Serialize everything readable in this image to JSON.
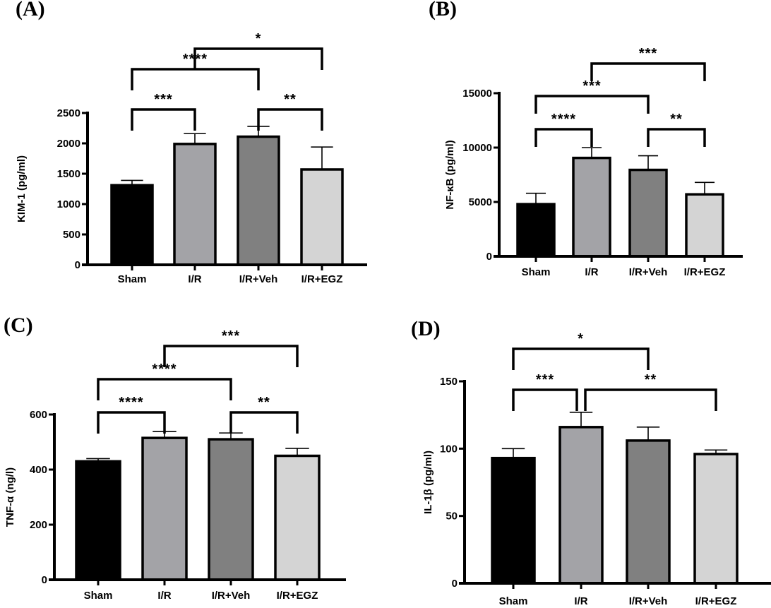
{
  "figure": {
    "panels": [
      "(A)",
      "(B)",
      "(C)",
      "(D)"
    ]
  },
  "chart_data": [
    {
      "panel": "(A)",
      "type": "bar",
      "title": "",
      "xlabel": "",
      "ylabel": "KIM-1 (pg/ml)",
      "categories": [
        "Sham",
        "I/R",
        "I/R+Veh",
        "I/R+EGZ"
      ],
      "values": [
        1310,
        1990,
        2110,
        1570
      ],
      "error_upper": [
        1390,
        2160,
        2280,
        1940
      ],
      "colors": [
        "#000000",
        "#a3a3a7",
        "#808080",
        "#d4d4d4"
      ],
      "ylim": [
        0,
        2500
      ],
      "yticks": [
        "0",
        "500",
        "1000",
        "1500",
        "2000",
        "2500"
      ],
      "ytick_values": [
        0,
        500,
        1000,
        1500,
        2000,
        2500
      ],
      "grid": false,
      "comparisons": [
        {
          "from": 0,
          "to": 1,
          "label": "***",
          "level": 0
        },
        {
          "from": 2,
          "to": 3,
          "label": "**",
          "level": 0
        },
        {
          "from": 0,
          "to": 2,
          "label": "****",
          "level": 1
        },
        {
          "from": 1,
          "to": 3,
          "label": "*",
          "level": 2
        }
      ]
    },
    {
      "panel": "(B)",
      "type": "bar",
      "title": "",
      "xlabel": "",
      "ylabel": "NF-κB (pg/ml)",
      "categories": [
        "Sham",
        "I/R",
        "I/R+Veh",
        "I/R+EGZ"
      ],
      "values": [
        4800,
        9050,
        7950,
        5700
      ],
      "error_upper": [
        5800,
        10000,
        9250,
        6800
      ],
      "colors": [
        "#000000",
        "#a3a3a7",
        "#808080",
        "#d4d4d4"
      ],
      "ylim": [
        0,
        15000
      ],
      "yticks": [
        "0",
        "5000",
        "10000",
        "15000"
      ],
      "ytick_values": [
        0,
        5000,
        10000,
        15000
      ],
      "grid": false,
      "comparisons": [
        {
          "from": 0,
          "to": 1,
          "label": "****",
          "level": 0
        },
        {
          "from": 2,
          "to": 3,
          "label": "**",
          "level": 0
        },
        {
          "from": 0,
          "to": 2,
          "label": "***",
          "level": 1
        },
        {
          "from": 1,
          "to": 3,
          "label": "***",
          "level": 2
        }
      ]
    },
    {
      "panel": "(C)",
      "type": "bar",
      "title": "",
      "xlabel": "",
      "ylabel": "TNF-α (ng/l)",
      "categories": [
        "Sham",
        "I/R",
        "I/R+Veh",
        "I/R+EGZ"
      ],
      "values": [
        430,
        515,
        510,
        450
      ],
      "error_upper": [
        440,
        538,
        533,
        477
      ],
      "colors": [
        "#000000",
        "#a3a3a7",
        "#808080",
        "#d4d4d4"
      ],
      "ylim": [
        0,
        600
      ],
      "yticks": [
        "0",
        "200",
        "400",
        "600"
      ],
      "ytick_values": [
        0,
        200,
        400,
        600
      ],
      "grid": false,
      "comparisons": [
        {
          "from": 0,
          "to": 1,
          "label": "****",
          "level": 0
        },
        {
          "from": 2,
          "to": 3,
          "label": "**",
          "level": 0
        },
        {
          "from": 0,
          "to": 2,
          "label": "****",
          "level": 1
        },
        {
          "from": 1,
          "to": 3,
          "label": "***",
          "level": 2
        }
      ]
    },
    {
      "panel": "(D)",
      "type": "bar",
      "title": "",
      "xlabel": "",
      "ylabel": "IL-1β (pg/ml)",
      "categories": [
        "Sham",
        "I/R",
        "I/R+Veh",
        "I/R+EGZ"
      ],
      "values": [
        93,
        116,
        106,
        96
      ],
      "error_upper": [
        100,
        127,
        116,
        99
      ],
      "colors": [
        "#000000",
        "#a3a3a7",
        "#808080",
        "#d4d4d4"
      ],
      "ylim": [
        0,
        150
      ],
      "yticks": [
        "0",
        "50",
        "100",
        "150"
      ],
      "ytick_values": [
        0,
        50,
        100,
        150
      ],
      "grid": false,
      "comparisons": [
        {
          "from": 0,
          "to": 1,
          "label": "***",
          "level": 0
        },
        {
          "from": 1,
          "to": 3,
          "label": "**",
          "level": 0
        },
        {
          "from": 0,
          "to": 2,
          "label": "*",
          "level": 1
        }
      ]
    }
  ]
}
